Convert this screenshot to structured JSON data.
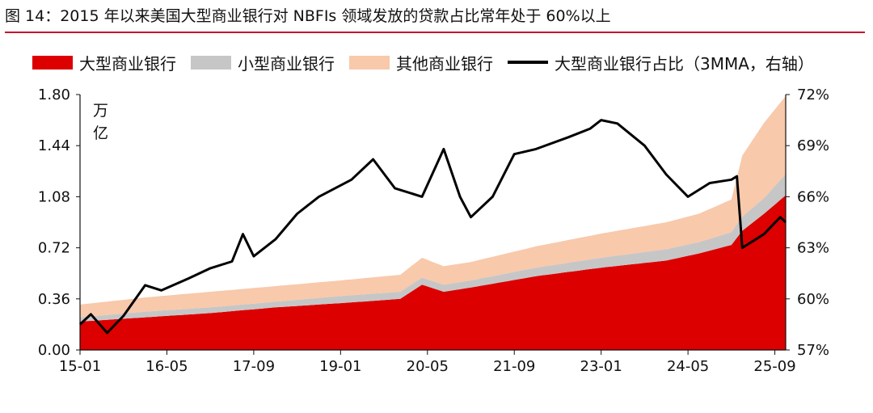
{
  "title": "图 14：2015 年以来美国大型商业银行对 NBFIs 领域发放的贷款占比常年处于 60%以上",
  "unit_label": "万\n亿",
  "colors": {
    "large": "#dc0000",
    "small": "#c6c6c6",
    "other": "#f8c9ab",
    "ratio": "#000000",
    "rule": "#c8102e"
  },
  "chart_data": {
    "type": "area",
    "title": "图 14：2015 年以来美国大型商业银行对 NBFIs 领域发放的贷款占比常年处于 60%以上",
    "y_left_label": "万亿",
    "y_left_ticks": [
      "0.00",
      "0.36",
      "0.72",
      "1.08",
      "1.44",
      "1.80"
    ],
    "y_left_range": [
      0,
      1.8
    ],
    "y_right_ticks": [
      "57%",
      "60%",
      "63%",
      "66%",
      "69%",
      "72%"
    ],
    "y_right_range": [
      57,
      72
    ],
    "x_ticks": [
      "15-01",
      "16-05",
      "17-09",
      "19-01",
      "20-05",
      "21-09",
      "23-01",
      "24-05",
      "25-09"
    ],
    "x_range": [
      "2015-01",
      "2025-11"
    ],
    "legend": [
      "大型商业银行",
      "小型商业银行",
      "其他商业银行",
      "大型商业银行占比（3MMA，右轴）"
    ],
    "series": [
      {
        "name": "大型商业银行",
        "axis": "left",
        "stack": true,
        "points": [
          [
            "2015-01",
            0.2
          ],
          [
            "2016-01",
            0.23
          ],
          [
            "2017-01",
            0.26
          ],
          [
            "2018-01",
            0.3
          ],
          [
            "2019-01",
            0.33
          ],
          [
            "2019-12",
            0.36
          ],
          [
            "2020-04",
            0.46
          ],
          [
            "2020-08",
            0.41
          ],
          [
            "2021-01",
            0.44
          ],
          [
            "2022-01",
            0.52
          ],
          [
            "2023-01",
            0.58
          ],
          [
            "2024-01",
            0.63
          ],
          [
            "2024-07",
            0.68
          ],
          [
            "2025-01",
            0.74
          ],
          [
            "2025-03",
            0.84
          ],
          [
            "2025-07",
            0.96
          ],
          [
            "2025-11",
            1.09
          ]
        ]
      },
      {
        "name": "小型商业银行",
        "axis": "left",
        "stack": true,
        "points": [
          [
            "2015-01",
            0.03
          ],
          [
            "2016-01",
            0.04
          ],
          [
            "2017-01",
            0.04
          ],
          [
            "2018-01",
            0.04
          ],
          [
            "2019-01",
            0.05
          ],
          [
            "2019-12",
            0.05
          ],
          [
            "2020-04",
            0.05
          ],
          [
            "2020-08",
            0.05
          ],
          [
            "2021-01",
            0.05
          ],
          [
            "2022-01",
            0.06
          ],
          [
            "2023-01",
            0.07
          ],
          [
            "2024-01",
            0.08
          ],
          [
            "2024-07",
            0.08
          ],
          [
            "2025-01",
            0.09
          ],
          [
            "2025-03",
            0.1
          ],
          [
            "2025-07",
            0.11
          ],
          [
            "2025-11",
            0.15
          ]
        ]
      },
      {
        "name": "其他商业银行",
        "axis": "left",
        "stack": true,
        "points": [
          [
            "2015-01",
            0.09
          ],
          [
            "2016-01",
            0.1
          ],
          [
            "2017-01",
            0.11
          ],
          [
            "2018-01",
            0.11
          ],
          [
            "2019-01",
            0.11
          ],
          [
            "2019-12",
            0.12
          ],
          [
            "2020-04",
            0.14
          ],
          [
            "2020-08",
            0.13
          ],
          [
            "2021-01",
            0.13
          ],
          [
            "2022-01",
            0.15
          ],
          [
            "2023-01",
            0.17
          ],
          [
            "2024-01",
            0.19
          ],
          [
            "2024-07",
            0.2
          ],
          [
            "2025-01",
            0.23
          ],
          [
            "2025-03",
            0.43
          ],
          [
            "2025-07",
            0.53
          ],
          [
            "2025-11",
            0.55
          ]
        ]
      },
      {
        "name": "大型商业银行占比（3MMA，右轴）",
        "axis": "right",
        "points": [
          [
            "2015-01",
            58.5
          ],
          [
            "2015-03",
            59.1
          ],
          [
            "2015-06",
            58.0
          ],
          [
            "2015-09",
            59.0
          ],
          [
            "2016-01",
            60.8
          ],
          [
            "2016-04",
            60.5
          ],
          [
            "2016-09",
            61.2
          ],
          [
            "2017-01",
            61.8
          ],
          [
            "2017-05",
            62.2
          ],
          [
            "2017-07",
            63.8
          ],
          [
            "2017-09",
            62.5
          ],
          [
            "2018-01",
            63.5
          ],
          [
            "2018-05",
            65.0
          ],
          [
            "2018-09",
            66.0
          ],
          [
            "2019-03",
            67.0
          ],
          [
            "2019-07",
            68.2
          ],
          [
            "2019-11",
            66.5
          ],
          [
            "2020-04",
            66.0
          ],
          [
            "2020-08",
            68.8
          ],
          [
            "2020-11",
            66.0
          ],
          [
            "2021-01",
            64.8
          ],
          [
            "2021-05",
            66.0
          ],
          [
            "2021-09",
            68.5
          ],
          [
            "2022-01",
            68.8
          ],
          [
            "2022-07",
            69.5
          ],
          [
            "2022-11",
            70.0
          ],
          [
            "2023-01",
            70.5
          ],
          [
            "2023-04",
            70.3
          ],
          [
            "2023-09",
            69.0
          ],
          [
            "2024-01",
            67.3
          ],
          [
            "2024-05",
            66.0
          ],
          [
            "2024-09",
            66.8
          ],
          [
            "2025-01",
            67.0
          ],
          [
            "2025-02",
            67.2
          ],
          [
            "2025-03",
            63.0
          ],
          [
            "2025-07",
            63.8
          ],
          [
            "2025-10",
            64.8
          ],
          [
            "2025-11",
            64.5
          ]
        ]
      }
    ],
    "grid": false,
    "legend_position": "top"
  }
}
